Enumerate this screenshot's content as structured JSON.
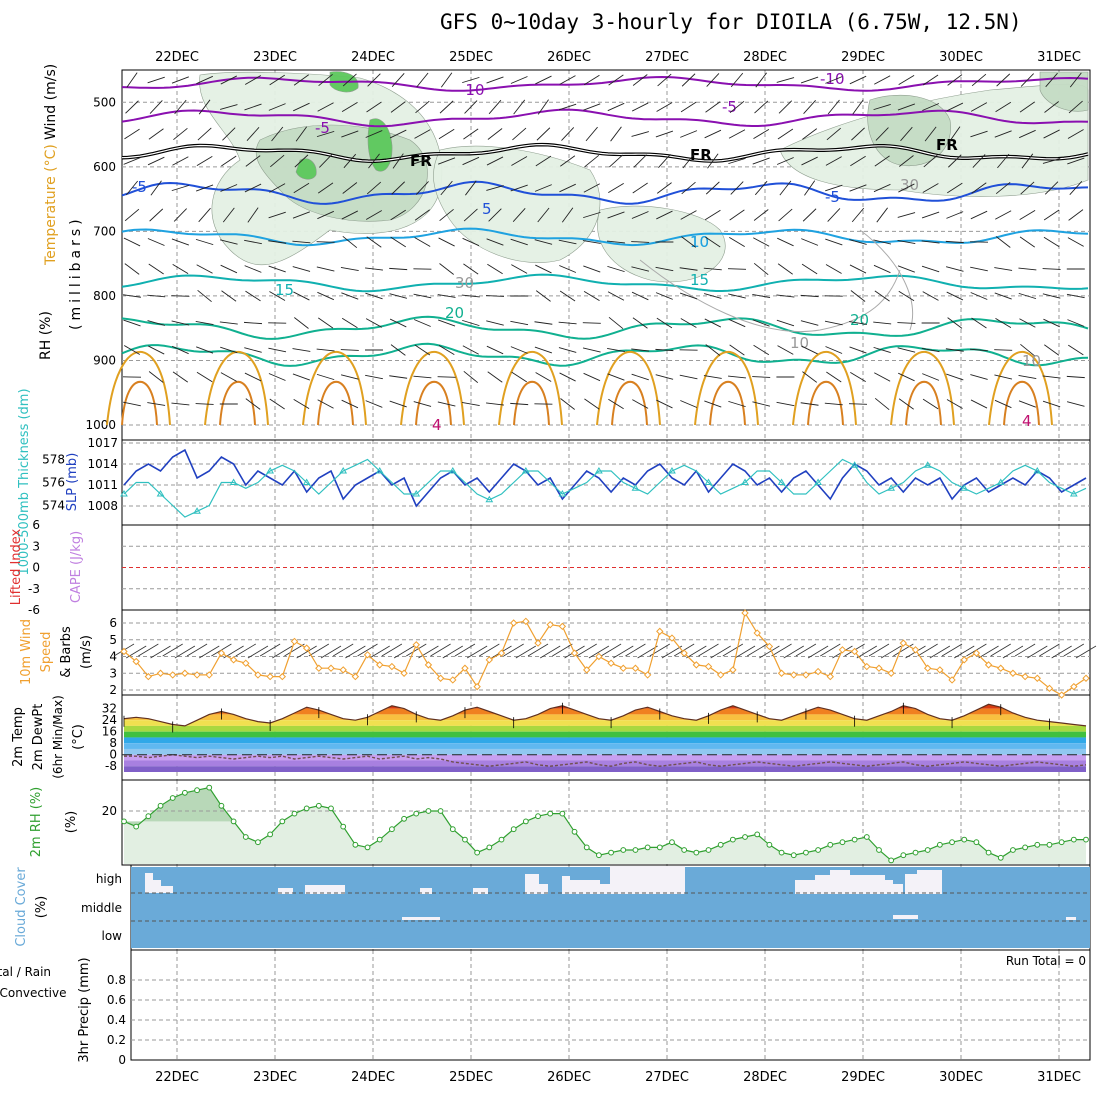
{
  "title": "GFS 0~10day 3-hourly for DIOILA (6.75W, 12.5N)",
  "dates": [
    "22DEC",
    "23DEC",
    "24DEC",
    "25DEC",
    "26DEC",
    "27DEC",
    "28DEC",
    "29DEC",
    "30DEC",
    "31DEC"
  ],
  "colors": {
    "frame": "#000000",
    "grid": "#9a9a9a",
    "purple": "#8a10b0",
    "blue": "#2050d8",
    "lightblue": "#1fa2e0",
    "teal": "#10b0b0",
    "green": "#10b090",
    "orange": "#e0a020",
    "freeze": "#000000",
    "rh_light": "#e4f1e4",
    "rh_mid": "#c5dcc5",
    "rh_dark": "#5cc85c",
    "thick": "#30c0c0",
    "slp": "#2040c0",
    "wind10": "#f0a030",
    "rh2m": "#30a030",
    "cloud_bg": "#6aaad8",
    "cloud_white": "#f4f2f8"
  },
  "panel_upper": {
    "ylabel_wind": "Wind (m/s)",
    "ylabel_temp": "Temperature (°C)",
    "ylabel_rh": "RH (%)",
    "ylabel_unit": "(millibars)",
    "ticks": [
      "500",
      "600",
      "700",
      "800",
      "900",
      "1000"
    ],
    "temp_labels": [
      "-10",
      "-10",
      "-5",
      "-5",
      "FR",
      "FR",
      "FR",
      "-5",
      "5",
      "-5",
      "10",
      "10",
      "15",
      "15",
      "20",
      "20",
      "30",
      "30",
      "10",
      "10",
      "4",
      "4"
    ]
  },
  "panel_thick": {
    "ylabel_left": "1000-500mb Thickness (dm)",
    "ylabel_right": "SLP (mb)",
    "left_ticks": [
      "578",
      "576",
      "574"
    ],
    "right_ticks": [
      "1017",
      "1014",
      "1011",
      "1008"
    ]
  },
  "panel_cape": {
    "ylabel_left": "Lifted Index",
    "ylabel_right": "CAPE (J/kg)",
    "ticks": [
      "6",
      "3",
      "0",
      "-3",
      "-6"
    ]
  },
  "panel_wind10": {
    "ylabel": "10m Wind Speed & Barbs (m/s)",
    "ticks": [
      "6",
      "5",
      "4",
      "3",
      "2"
    ]
  },
  "panel_temp2m": {
    "ylabel": "2m Temp 2m DewPt (6hr Min/Max) (°C)",
    "ticks": [
      "32",
      "24",
      "16",
      "8",
      "0",
      "-8"
    ]
  },
  "panel_rh2m": {
    "ylabel": "2m RH (%)",
    "ticks": [
      "20"
    ]
  },
  "panel_cloud": {
    "ylabel": "Cloud Cover (%)",
    "levels": [
      "high",
      "middle",
      "low"
    ]
  },
  "panel_precip": {
    "ylabel_total": "Total / Rain",
    "ylabel_conv": "Convective",
    "ylabel_main": "3hr Precip (mm)",
    "ticks": [
      "0.8",
      "0.6",
      "0.4",
      "0.2",
      "0"
    ],
    "run_total": "Run Total = 0"
  },
  "chart_data": [
    {
      "type": "line",
      "title": "1000-500mb Thickness / SLP",
      "series": [
        {
          "name": "SLP (mb)",
          "values": [
            1011,
            1013,
            1014,
            1013,
            1015,
            1016,
            1012,
            1013,
            1015,
            1014,
            1011,
            1013,
            1012,
            1011,
            1013,
            1010,
            1012,
            1013,
            1009,
            1011,
            1012,
            1013,
            1011,
            1012,
            1008,
            1010,
            1012,
            1013,
            1011,
            1012,
            1010,
            1012,
            1014,
            1013,
            1011,
            1012,
            1009,
            1011,
            1013,
            1012,
            1010,
            1012,
            1011,
            1013,
            1014,
            1012,
            1011,
            1013,
            1010,
            1012,
            1014,
            1013,
            1011,
            1012,
            1010,
            1012,
            1013,
            1011,
            1009,
            1012,
            1014,
            1013,
            1011,
            1012,
            1010,
            1012,
            1011,
            1012,
            1009,
            1011,
            1012,
            1010,
            1011,
            1012,
            1011,
            1013,
            1012,
            1010,
            1011,
            1012
          ]
        },
        {
          "name": "1000-500mb Thickness (dm)",
          "values": [
            575,
            576,
            576,
            575,
            574,
            573,
            573.5,
            574,
            576,
            576,
            575.5,
            576,
            577,
            577.5,
            577,
            576,
            575,
            576,
            577,
            577.5,
            578,
            577,
            576,
            575,
            575,
            576,
            577,
            577,
            576,
            575,
            574.5,
            575,
            576,
            577,
            577,
            576,
            575,
            575.5,
            576,
            577,
            577,
            576,
            575.5,
            575,
            576,
            577,
            577.5,
            577,
            576,
            575,
            575.5,
            576,
            577,
            577,
            576,
            575,
            575,
            576,
            577,
            578,
            577.5,
            576,
            575,
            575.5,
            576,
            577,
            577.5,
            577,
            576,
            575.5,
            575,
            575.5,
            576,
            577,
            577.5,
            577,
            576,
            575.5,
            575,
            575.5
          ]
        }
      ]
    },
    {
      "type": "line",
      "title": "10m Wind Speed",
      "series": [
        {
          "name": "10m Wind Speed (m/s)",
          "values": [
            4.3,
            3.7,
            2.8,
            3,
            2.9,
            3,
            2.9,
            2.9,
            4.2,
            3.8,
            3.6,
            2.9,
            2.8,
            2.8,
            4.9,
            4.5,
            3.3,
            3.3,
            3.2,
            2.8,
            4.1,
            3.5,
            3.4,
            3,
            4.7,
            3.5,
            2.7,
            2.6,
            3.3,
            2.2,
            3.8,
            4.2,
            6,
            6.1,
            4.8,
            5.9,
            5.8,
            4.2,
            3.2,
            4,
            3.6,
            3.3,
            3.3,
            2.9,
            5.5,
            5.1,
            4.2,
            3.5,
            3.4,
            2.9,
            3.2,
            6.6,
            5.4,
            4.6,
            3,
            2.9,
            2.9,
            3.1,
            2.8,
            4.4,
            4.3,
            3.4,
            3.3,
            3,
            4.8,
            4.4,
            3.3,
            3.2,
            2.6,
            3.8,
            4.2,
            3.5,
            3.3,
            3,
            2.8,
            2.7,
            2.1,
            1.7,
            2.2,
            2.7
          ]
        }
      ]
    },
    {
      "type": "area",
      "title": "2m Temp / 2m DewPt",
      "series": [
        {
          "name": "2m Temp (°C)",
          "values": [
            25,
            26,
            25,
            23,
            21,
            20,
            24,
            28,
            30,
            28,
            25,
            23,
            22,
            25,
            29,
            33,
            31,
            28,
            25,
            24,
            26,
            30,
            34,
            32,
            28,
            25,
            24,
            27,
            31,
            33,
            30,
            27,
            24,
            25,
            28,
            32,
            34,
            31,
            28,
            25,
            24,
            27,
            31,
            33,
            30,
            27,
            25,
            24,
            27,
            31,
            34,
            31,
            28,
            25,
            24,
            27,
            30,
            33,
            31,
            28,
            25,
            24,
            27,
            30,
            34,
            32,
            28,
            25,
            24,
            27,
            31,
            35,
            33,
            29,
            26,
            24,
            23,
            22,
            21,
            20
          ]
        },
        {
          "name": "2m DewPt (°C)",
          "values": [
            -1,
            -1,
            -2,
            -1,
            0,
            -1,
            -2,
            -1,
            -2,
            -3,
            -2,
            -1,
            -2,
            -1,
            -3,
            -2,
            -1,
            -2,
            -3,
            -2,
            -1,
            -3,
            -2,
            -1,
            -3,
            -2,
            -3,
            -5,
            -6,
            -7,
            -8,
            -7,
            -6,
            -5,
            -7,
            -8,
            -7,
            -6,
            -5,
            -7,
            -8,
            -6,
            -5,
            -7,
            -8,
            -7,
            -6,
            -5,
            -7,
            -8,
            -7,
            -6,
            -5,
            -6,
            -7,
            -8,
            -7,
            -6,
            -5,
            -6,
            -7,
            -8,
            -7,
            -6,
            -5,
            -7,
            -8,
            -7,
            -6,
            -5,
            -6,
            -7,
            -8,
            -7,
            -6,
            -5,
            -6,
            -7,
            -8,
            -7
          ]
        }
      ]
    },
    {
      "type": "area",
      "title": "2m RH",
      "series": [
        {
          "name": "2m RH (%)",
          "values": [
            16,
            14,
            18,
            22,
            25,
            27,
            28,
            29,
            22,
            16,
            10,
            8,
            11,
            16,
            19,
            21,
            22,
            21,
            14,
            7,
            6,
            9,
            13,
            17,
            19,
            20,
            20,
            13,
            9,
            4,
            6,
            9,
            13,
            16,
            18,
            19,
            19,
            12,
            6,
            3,
            4,
            5,
            5,
            6,
            6,
            8,
            5,
            4,
            5,
            7,
            9,
            10,
            11,
            7,
            4,
            3,
            4,
            5,
            7,
            8,
            9,
            10,
            5,
            1,
            3,
            4,
            5,
            7,
            8,
            9,
            8,
            4,
            2,
            5,
            6,
            7,
            7,
            8,
            9,
            9
          ]
        }
      ]
    }
  ]
}
